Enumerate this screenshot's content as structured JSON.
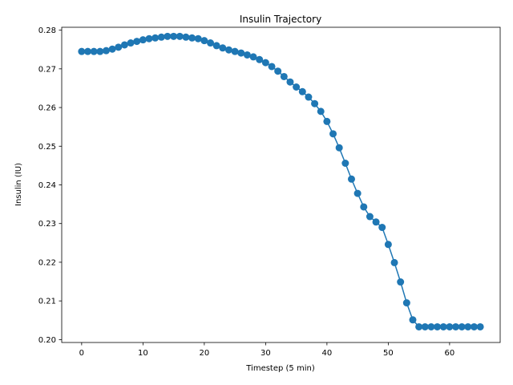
{
  "chart_data": {
    "type": "line",
    "title": "Insulin Trajectory",
    "xlabel": "Timestep (5 min)",
    "ylabel": "Insulin (IU)",
    "xlim": [
      -3.25,
      68.25
    ],
    "ylim": [
      0.19925,
      0.28075
    ],
    "xticks": [
      0,
      10,
      20,
      30,
      40,
      50,
      60
    ],
    "yticks": [
      0.2,
      0.21,
      0.22,
      0.23,
      0.24,
      0.25,
      0.26,
      0.27,
      0.28
    ],
    "ytick_labels": [
      "0.20",
      "0.21",
      "0.22",
      "0.23",
      "0.24",
      "0.25",
      "0.26",
      "0.27",
      "0.28"
    ],
    "grid": false,
    "legend": "none",
    "marker": "circle",
    "series_color": "#1f77b4",
    "series": [
      {
        "x": [
          0,
          1,
          2,
          3,
          4,
          5,
          6,
          7,
          8,
          9,
          10,
          11,
          12,
          13,
          14,
          15,
          16,
          17,
          18,
          19,
          20,
          21,
          22,
          23,
          24,
          25,
          26,
          27,
          28,
          29,
          30,
          31,
          32,
          33,
          34,
          35,
          36,
          37,
          38,
          39,
          40,
          41,
          42,
          43,
          44,
          45,
          46,
          47,
          48,
          49,
          50,
          51,
          52,
          53,
          54,
          55,
          56,
          57,
          58,
          59,
          60,
          61,
          62,
          63,
          64,
          65
        ],
        "values": [
          0.2745,
          0.2745,
          0.2745,
          0.2745,
          0.2747,
          0.2751,
          0.2756,
          0.2762,
          0.2767,
          0.2771,
          0.2775,
          0.2778,
          0.278,
          0.2782,
          0.2784,
          0.2784,
          0.2784,
          0.2782,
          0.278,
          0.2778,
          0.2773,
          0.2767,
          0.276,
          0.2754,
          0.2749,
          0.2745,
          0.2741,
          0.2736,
          0.2731,
          0.2724,
          0.2716,
          0.2706,
          0.2694,
          0.268,
          0.2666,
          0.2653,
          0.2641,
          0.2627,
          0.261,
          0.259,
          0.2564,
          0.2532,
          0.2496,
          0.2456,
          0.2415,
          0.2378,
          0.2343,
          0.2318,
          0.2304,
          0.229,
          0.2246,
          0.2199,
          0.2149,
          0.2095,
          0.2051,
          0.2033,
          0.2033,
          0.2033,
          0.2033,
          0.2033,
          0.2033,
          0.2033,
          0.2033,
          0.2033,
          0.2033,
          0.2033
        ]
      }
    ]
  }
}
